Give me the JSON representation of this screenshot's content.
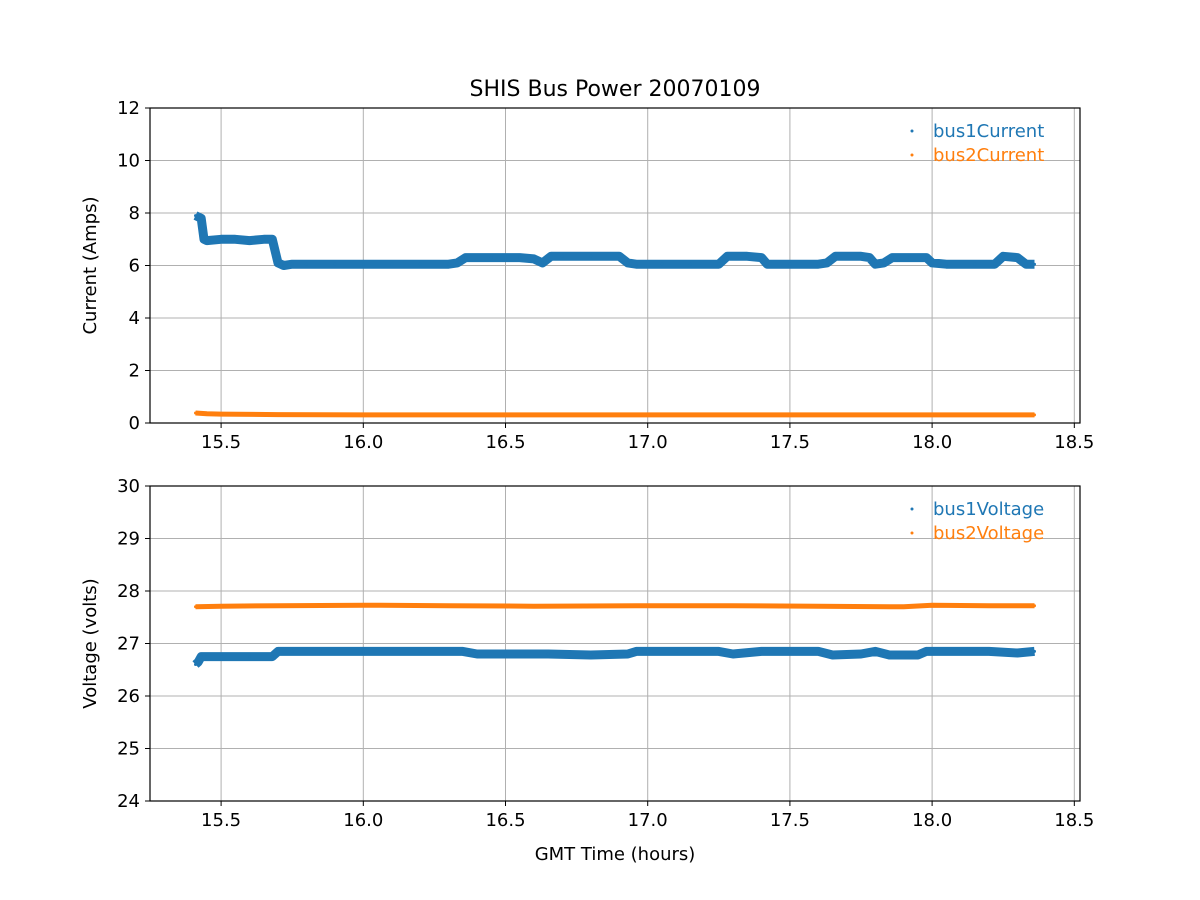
{
  "chart_data": [
    {
      "type": "scatter",
      "title": "SHIS Bus Power 20070109",
      "xlabel": "",
      "ylabel": "Current (Amps)",
      "xlim": [
        15.25,
        18.52
      ],
      "ylim": [
        0,
        12
      ],
      "xticks": [
        "15.5",
        "16.0",
        "16.5",
        "17.0",
        "17.5",
        "18.0",
        "18.5"
      ],
      "xtick_values": [
        15.5,
        16.0,
        16.5,
        17.0,
        17.5,
        18.0,
        18.5
      ],
      "yticks": [
        "0",
        "2",
        "4",
        "6",
        "8",
        "10",
        "12"
      ],
      "ytick_values": [
        0,
        2,
        4,
        6,
        8,
        10,
        12
      ],
      "grid": true,
      "legend_position": "top-right",
      "series": [
        {
          "name": "bus1Current",
          "color": "#1f77b4",
          "x": [
            15.41,
            15.42,
            15.43,
            15.44,
            15.45,
            15.5,
            15.55,
            15.6,
            15.65,
            15.68,
            15.7,
            15.72,
            15.75,
            15.8,
            15.9,
            16.0,
            16.1,
            16.2,
            16.3,
            16.33,
            16.36,
            16.45,
            16.55,
            16.6,
            16.63,
            16.66,
            16.7,
            16.8,
            16.9,
            16.93,
            16.96,
            17.05,
            17.15,
            17.25,
            17.28,
            17.35,
            17.4,
            17.42,
            17.5,
            17.6,
            17.63,
            17.66,
            17.75,
            17.78,
            17.8,
            17.83,
            17.86,
            17.92,
            17.98,
            18.0,
            18.05,
            18.15,
            18.22,
            18.25,
            18.3,
            18.33,
            18.36
          ],
          "y": [
            7.9,
            7.85,
            7.8,
            7.0,
            6.95,
            7.0,
            7.0,
            6.95,
            7.0,
            7.0,
            6.1,
            6.0,
            6.05,
            6.05,
            6.05,
            6.05,
            6.05,
            6.05,
            6.05,
            6.1,
            6.3,
            6.3,
            6.3,
            6.25,
            6.1,
            6.35,
            6.35,
            6.35,
            6.35,
            6.1,
            6.05,
            6.05,
            6.05,
            6.05,
            6.35,
            6.35,
            6.3,
            6.05,
            6.05,
            6.05,
            6.1,
            6.35,
            6.35,
            6.3,
            6.05,
            6.1,
            6.3,
            6.3,
            6.3,
            6.1,
            6.05,
            6.05,
            6.05,
            6.35,
            6.3,
            6.05,
            6.05
          ]
        },
        {
          "name": "bus2Current",
          "color": "#ff7f0e",
          "x": [
            15.41,
            15.45,
            15.5,
            15.7,
            16.0,
            16.5,
            17.0,
            17.5,
            18.0,
            18.36
          ],
          "y": [
            0.38,
            0.35,
            0.34,
            0.32,
            0.31,
            0.31,
            0.31,
            0.31,
            0.31,
            0.31
          ]
        }
      ]
    },
    {
      "type": "scatter",
      "title": "",
      "xlabel": "GMT Time (hours)",
      "ylabel": "Voltage (volts)",
      "xlim": [
        15.25,
        18.52
      ],
      "ylim": [
        24,
        30
      ],
      "xticks": [
        "15.5",
        "16.0",
        "16.5",
        "17.0",
        "17.5",
        "18.0",
        "18.5"
      ],
      "xtick_values": [
        15.5,
        16.0,
        16.5,
        17.0,
        17.5,
        18.0,
        18.5
      ],
      "yticks": [
        "24",
        "25",
        "26",
        "27",
        "28",
        "29",
        "30"
      ],
      "ytick_values": [
        24,
        25,
        26,
        27,
        28,
        29,
        30
      ],
      "grid": true,
      "legend_position": "top-right",
      "series": [
        {
          "name": "bus1Voltage",
          "color": "#1f77b4",
          "x": [
            15.41,
            15.42,
            15.43,
            15.45,
            15.5,
            15.6,
            15.68,
            15.7,
            15.75,
            15.85,
            16.0,
            16.2,
            16.35,
            16.4,
            16.5,
            16.65,
            16.8,
            16.93,
            16.96,
            17.1,
            17.25,
            17.3,
            17.4,
            17.5,
            17.6,
            17.65,
            17.75,
            17.8,
            17.85,
            17.95,
            17.98,
            18.1,
            18.2,
            18.3,
            18.36
          ],
          "y": [
            26.6,
            26.65,
            26.75,
            26.75,
            26.75,
            26.75,
            26.75,
            26.85,
            26.85,
            26.85,
            26.85,
            26.85,
            26.85,
            26.8,
            26.8,
            26.8,
            26.78,
            26.8,
            26.85,
            26.85,
            26.85,
            26.8,
            26.85,
            26.85,
            26.85,
            26.78,
            26.8,
            26.85,
            26.78,
            26.78,
            26.85,
            26.85,
            26.85,
            26.82,
            26.85
          ]
        },
        {
          "name": "bus2Voltage",
          "color": "#ff7f0e",
          "x": [
            15.41,
            15.5,
            15.7,
            16.0,
            16.3,
            16.6,
            17.0,
            17.3,
            17.6,
            17.9,
            18.0,
            18.2,
            18.36
          ],
          "y": [
            27.7,
            27.71,
            27.72,
            27.73,
            27.72,
            27.71,
            27.72,
            27.72,
            27.71,
            27.7,
            27.73,
            27.72,
            27.72
          ]
        }
      ]
    }
  ]
}
